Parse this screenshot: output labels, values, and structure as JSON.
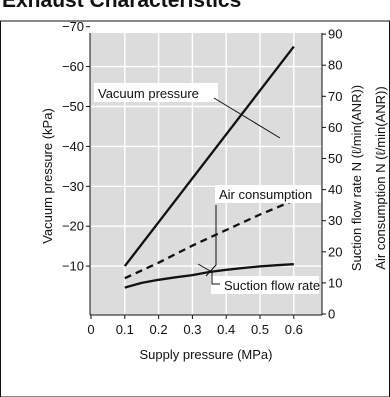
{
  "title": "Exhaust Characteristics",
  "chart_data": {
    "type": "line",
    "xlabel": "Supply pressure (MPa)",
    "ylabel_left": "Vacuum pressure (kPa)",
    "ylabel_right_1": "Suction flow rate N (ℓ/min(ANR))",
    "ylabel_right_2": "Air consumption N (ℓ/min(ANR))",
    "x_ticks": [
      "0",
      "0.1",
      "0.2",
      "0.3",
      "0.4",
      "0.5",
      "0.6"
    ],
    "y_left_ticks": [
      "−70",
      "−60",
      "−50",
      "−40",
      "−30",
      "−20",
      "−10"
    ],
    "y_right_ticks": [
      "90",
      "80",
      "70",
      "60",
      "50",
      "40",
      "30",
      "20",
      "10",
      "0"
    ],
    "xlim": [
      0,
      0.65
    ],
    "ylim_left": [
      0,
      -70
    ],
    "ylim_right": [
      0,
      90
    ],
    "grid": true,
    "series": [
      {
        "name": "Vacuum pressure",
        "axis": "left",
        "style": "solid",
        "x": [
          0.1,
          0.6
        ],
        "y": [
          -10,
          -65
        ]
      },
      {
        "name": "Air consumption",
        "axis": "right",
        "style": "dashed",
        "x": [
          0.1,
          0.2,
          0.3,
          0.4,
          0.5,
          0.6
        ],
        "y": [
          11.5,
          16.5,
          22,
          27,
          32,
          36.5
        ]
      },
      {
        "name": "Suction flow rate",
        "axis": "right",
        "style": "solid",
        "x": [
          0.1,
          0.15,
          0.2,
          0.25,
          0.3,
          0.35,
          0.4,
          0.45,
          0.5,
          0.55,
          0.6
        ],
        "y": [
          8.5,
          10,
          11,
          11.8,
          12.5,
          13.5,
          14.2,
          14.8,
          15.3,
          15.7,
          16
        ]
      }
    ]
  }
}
